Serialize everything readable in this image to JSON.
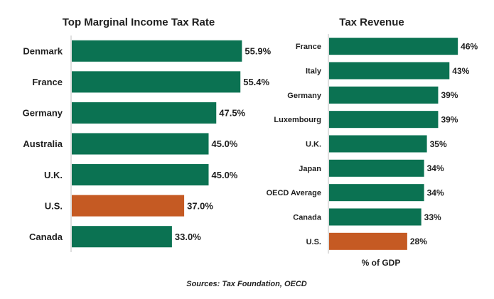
{
  "colors": {
    "bar_default": "#0b7252",
    "bar_highlight": "#c55a23",
    "axis_line": "#bfbfbf",
    "text": "#1f1f1f"
  },
  "chart_data": [
    {
      "type": "bar",
      "orientation": "horizontal",
      "title": "Top Marginal Income Tax Rate",
      "categories": [
        "Denmark",
        "France",
        "Germany",
        "Australia",
        "U.K.",
        "U.S.",
        "Canada"
      ],
      "values": [
        55.9,
        55.4,
        47.5,
        45.0,
        45.0,
        37.0,
        33.0
      ],
      "value_labels": [
        "55.9%",
        "55.4%",
        "47.5%",
        "45.0%",
        "45.0%",
        "37.0%",
        "33.0%"
      ],
      "highlight": [
        "U.S."
      ],
      "xlabel": "",
      "ylabel": "",
      "xlim": [
        0,
        60
      ],
      "grid": false,
      "legend": "none"
    },
    {
      "type": "bar",
      "orientation": "horizontal",
      "title": "Tax Revenue",
      "categories": [
        "France",
        "Italy",
        "Germany",
        "Luxembourg",
        "U.K.",
        "Japan",
        "OECD Average",
        "Canada",
        "U.S."
      ],
      "values": [
        46,
        43,
        39,
        39,
        35,
        34,
        34,
        33,
        28
      ],
      "value_labels": [
        "46%",
        "43%",
        "39%",
        "39%",
        "35%",
        "34%",
        "34%",
        "33%",
        "28%"
      ],
      "highlight": [
        "U.S."
      ],
      "xlabel": "% of GDP",
      "ylabel": "",
      "xlim": [
        0,
        50
      ],
      "grid": false,
      "legend": "none"
    }
  ],
  "footer": {
    "source": "Sources: Tax Foundation, OECD"
  }
}
